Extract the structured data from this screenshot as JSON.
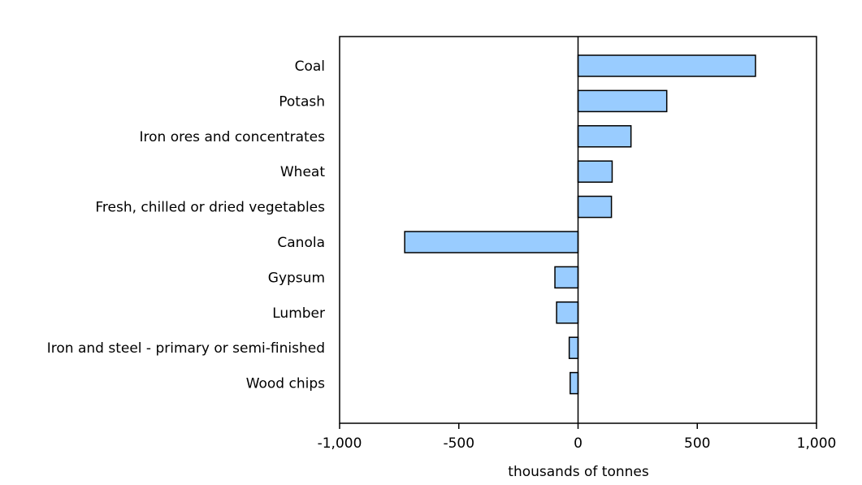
{
  "chart_data": {
    "type": "bar",
    "orientation": "horizontal",
    "categories": [
      "Coal",
      "Potash",
      "Iron ores and concentrates",
      "Wheat",
      "Fresh, chilled or dried vegetables",
      "Canola",
      "Gypsum",
      "Lumber",
      "Iron and steel - primary or semi-finished",
      "Wood chips"
    ],
    "values": [
      744,
      372,
      222,
      143,
      140,
      -727,
      -97,
      -90,
      -37,
      -33
    ],
    "xlabel": "thousands of tonnes",
    "ylabel": "",
    "xlim": [
      -1000,
      1000
    ],
    "xticks": [
      -1000,
      -500,
      0,
      500,
      1000
    ],
    "xtick_labels": [
      "-1,000",
      "-500",
      "0",
      "500",
      "1,000"
    ],
    "grid": false,
    "bar_color": "#99ccff",
    "bar_stroke": "#000000"
  }
}
